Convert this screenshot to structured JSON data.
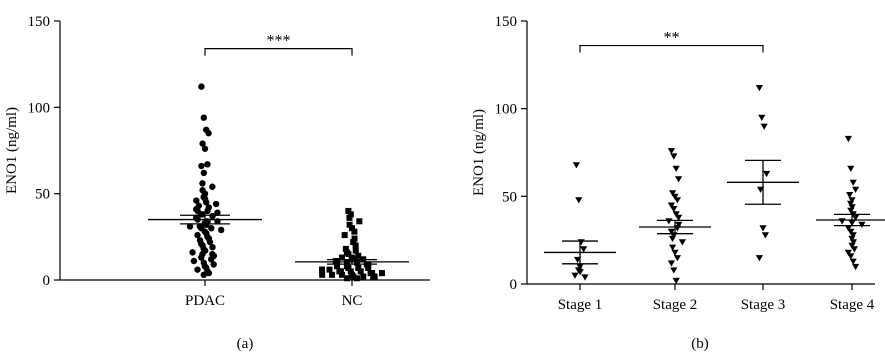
{
  "chart_data": [
    {
      "type": "scatter",
      "panel_label": "(a)",
      "ylabel": "ENO1 (ng/ml)",
      "ylim": [
        0,
        150
      ],
      "yticks": [
        0,
        50,
        100,
        150
      ],
      "categories": [
        "PDAC",
        "NC"
      ],
      "series": [
        {
          "marker": "circle",
          "values": [
            112,
            94,
            87,
            85,
            79,
            76,
            67,
            66,
            62,
            56,
            54,
            52,
            50,
            48,
            47,
            46,
            45,
            44,
            43,
            42,
            41,
            40,
            40,
            39,
            38,
            38,
            37,
            36,
            35,
            34,
            34,
            33,
            32,
            31,
            31,
            30,
            30,
            29,
            28,
            27,
            26,
            25,
            24,
            23,
            22,
            21,
            20,
            19,
            18,
            17,
            16,
            15,
            15,
            14,
            13,
            12,
            11,
            10,
            9,
            8,
            7,
            6,
            5,
            4,
            3
          ],
          "mean": 35,
          "sem": 2.5
        },
        {
          "marker": "square",
          "values": [
            40,
            38,
            36,
            34,
            32,
            30,
            28,
            26,
            24,
            22,
            20,
            18,
            17,
            16,
            15,
            14,
            13,
            13,
            12,
            12,
            11,
            11,
            10,
            10,
            9,
            9,
            8,
            8,
            7,
            7,
            7,
            6,
            6,
            6,
            5,
            5,
            5,
            5,
            4,
            4,
            4,
            4,
            3,
            3,
            3,
            3,
            2,
            2,
            2,
            2,
            1,
            1
          ],
          "mean": 10.5,
          "sem": 1.3
        }
      ],
      "significance": [
        {
          "from": "PDAC",
          "to": "NC",
          "y": 134,
          "label": "***"
        }
      ]
    },
    {
      "type": "scatter",
      "panel_label": "(b)",
      "ylabel": "ENO1 (ng/ml)",
      "ylim": [
        0,
        150
      ],
      "yticks": [
        0,
        50,
        100,
        150
      ],
      "categories": [
        "Stage 1",
        "Stage 2",
        "Stage 3",
        "Stage 4"
      ],
      "series": [
        {
          "marker": "triangle-down",
          "values": [
            68,
            48,
            24,
            20,
            14,
            10,
            8,
            7,
            5,
            4
          ],
          "mean": 18,
          "sem": 6.5
        },
        {
          "marker": "triangle-down",
          "values": [
            76,
            73,
            66,
            60,
            52,
            50,
            48,
            45,
            43,
            40,
            38,
            36,
            34,
            32,
            30,
            28,
            26,
            24,
            21,
            18,
            15,
            12,
            8,
            2
          ],
          "mean": 32.5,
          "sem": 3.8
        },
        {
          "marker": "triangle-down",
          "values": [
            112,
            95,
            90,
            63,
            54,
            32,
            28,
            15
          ],
          "mean": 58,
          "sem": 12.5
        },
        {
          "marker": "triangle-down",
          "values": [
            83,
            66,
            58,
            54,
            51,
            48,
            46,
            44,
            42,
            40,
            38,
            36,
            35,
            34,
            32,
            30,
            28,
            26,
            24,
            22,
            20,
            18,
            16,
            13,
            10
          ],
          "mean": 36.5,
          "sem": 3.2
        }
      ],
      "significance": [
        {
          "from": "Stage 1",
          "to": "Stage 3",
          "y": 136,
          "label": "**"
        }
      ]
    }
  ]
}
